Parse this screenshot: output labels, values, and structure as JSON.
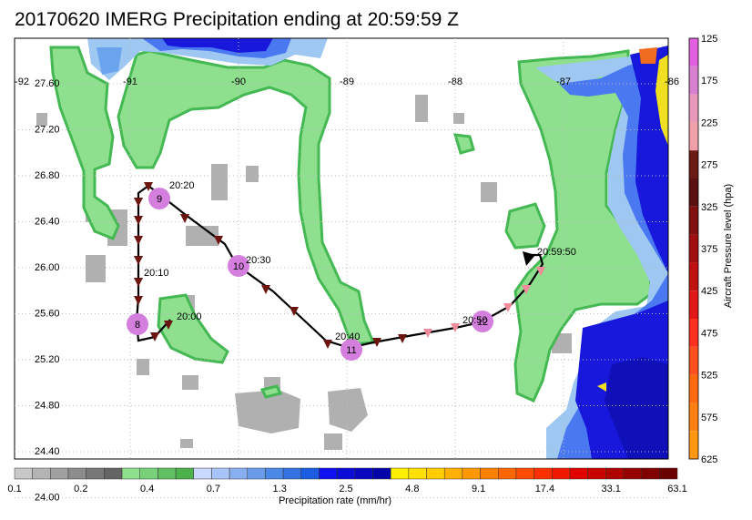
{
  "title": "20170620 IMERG Precipitation ending at 20:59:59 Z",
  "longitude_labels": [
    "-92",
    "-91",
    "-90",
    "-89",
    "-88",
    "-87",
    "-86"
  ],
  "latitude_labels": [
    "27.60",
    "27.20",
    "26.80",
    "26.40",
    "26.00",
    "25.60",
    "25.20",
    "24.80",
    "24.40",
    "24.00"
  ],
  "time_labels": [
    "20:00",
    "20:10",
    "20:20",
    "20:30",
    "20:40",
    "20:50",
    "20:59:50"
  ],
  "waypoint_labels": [
    "8",
    "9",
    "10",
    "11",
    "12"
  ],
  "colorbar_bottom": {
    "label": "Precipitation rate (mm/hr)",
    "ticks": [
      "0.1",
      "0.2",
      "0.4",
      "0.7",
      "1.3",
      "2.5",
      "4.8",
      "9.1",
      "17.4",
      "33.1",
      "63.1"
    ]
  },
  "colorbar_right": {
    "label": "Aircraft Pressure level (hpa)",
    "ticks": [
      "125",
      "175",
      "225",
      "275",
      "325",
      "375",
      "425",
      "475",
      "525",
      "575",
      "625"
    ]
  },
  "colors": {
    "precip_light": "#8ee08e",
    "precip_light_edge": "#44b852",
    "precip_blue_light": "#9ec8f2",
    "precip_blue": "#4a78f0",
    "precip_blue_dark": "#1010e0",
    "track_high": "#f08c9c",
    "track_low": "#6b1410",
    "waypoint": "#d47fdd"
  }
}
